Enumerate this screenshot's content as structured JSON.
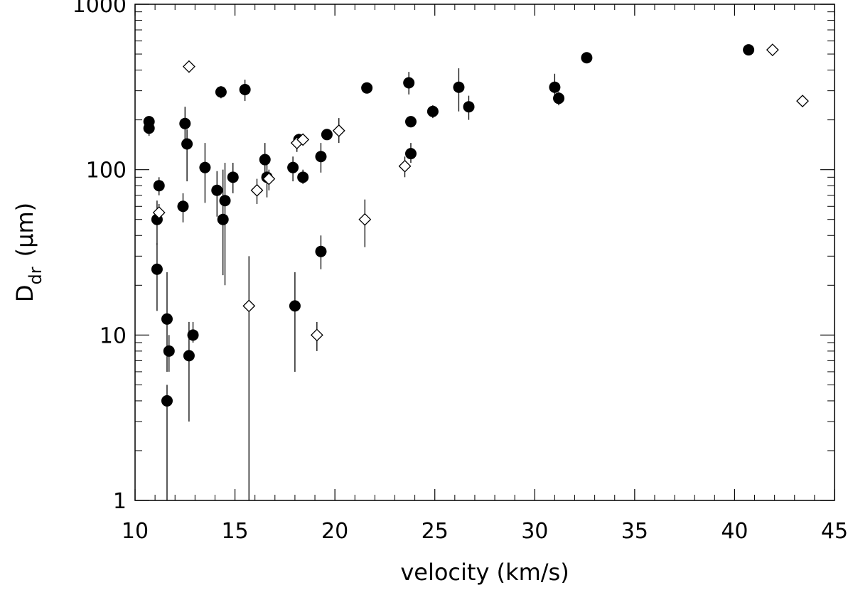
{
  "chart_data": {
    "type": "scatter",
    "xlabel": "velocity (km/s)",
    "ylabel": {
      "main": "D",
      "sub": "dr",
      "unit": "(μm)"
    },
    "xlim": [
      10,
      45
    ],
    "ylim": [
      1,
      1000
    ],
    "yscale": "log",
    "x_ticks": [
      10,
      15,
      20,
      25,
      30,
      35,
      40,
      45
    ],
    "x_tick_labels": [
      "10",
      "15",
      "20",
      "25",
      "30",
      "35",
      "40",
      "45"
    ],
    "x_minor_step": 1,
    "y_ticks": [
      1,
      10,
      100,
      1000
    ],
    "y_tick_labels": [
      "1",
      "10",
      "100",
      "1000"
    ],
    "grid": false,
    "legend": "none",
    "series": [
      {
        "marker": "filled-circle",
        "points": [
          {
            "x": 10.7,
            "y": 195,
            "err": [
              180,
              210
            ]
          },
          {
            "x": 10.7,
            "y": 178,
            "err": [
              160,
              195
            ]
          },
          {
            "x": 11.1,
            "y": 50,
            "err": [
              35,
              65
            ]
          },
          {
            "x": 11.2,
            "y": 80,
            "err": [
              70,
              90
            ]
          },
          {
            "x": 11.1,
            "y": 25,
            "err": [
              14,
              36
            ]
          },
          {
            "x": 11.6,
            "y": 12.5,
            "err": [
              6,
              24
            ]
          },
          {
            "x": 11.7,
            "y": 8,
            "err": [
              6,
              10
            ]
          },
          {
            "x": 11.6,
            "y": 4,
            "err": [
              1,
              5
            ]
          },
          {
            "x": 12.4,
            "y": 60,
            "err": [
              48,
              72
            ]
          },
          {
            "x": 12.5,
            "y": 190,
            "err": [
              150,
              240
            ]
          },
          {
            "x": 12.6,
            "y": 143,
            "err": [
              85,
              175
            ]
          },
          {
            "x": 12.7,
            "y": 7.5,
            "err": [
              3,
              12
            ]
          },
          {
            "x": 12.9,
            "y": 10,
            "err": [
              9,
              12
            ]
          },
          {
            "x": 13.5,
            "y": 103,
            "err": [
              63,
              145
            ]
          },
          {
            "x": 14.1,
            "y": 75,
            "err": [
              52,
              98
            ]
          },
          {
            "x": 14.3,
            "y": 295,
            "err": [
              270,
              320
            ]
          },
          {
            "x": 14.4,
            "y": 50,
            "err": [
              23,
              100
            ]
          },
          {
            "x": 14.5,
            "y": 65,
            "err": [
              20,
              110
            ]
          },
          {
            "x": 14.9,
            "y": 90,
            "err": [
              72,
              110
            ]
          },
          {
            "x": 15.5,
            "y": 305,
            "err": [
              260,
              350
            ]
          },
          {
            "x": 16.5,
            "y": 115,
            "err": [
              90,
              145
            ]
          },
          {
            "x": 16.6,
            "y": 90,
            "err": [
              68,
              110
            ]
          },
          {
            "x": 17.9,
            "y": 103,
            "err": [
              85,
              120
            ]
          },
          {
            "x": 18.0,
            "y": 15,
            "err": [
              6,
              24
            ]
          },
          {
            "x": 18.2,
            "y": 152,
            "err": [
              140,
              165
            ]
          },
          {
            "x": 18.4,
            "y": 90,
            "err": [
              82,
              100
            ]
          },
          {
            "x": 19.3,
            "y": 32,
            "err": [
              25,
              40
            ]
          },
          {
            "x": 19.3,
            "y": 120,
            "err": [
              96,
              145
            ]
          },
          {
            "x": 19.6,
            "y": 163,
            "err": [
              155,
              172
            ]
          },
          {
            "x": 21.6,
            "y": 312,
            "err": [
              290,
              335
            ]
          },
          {
            "x": 23.7,
            "y": 335,
            "err": [
              285,
              390
            ]
          },
          {
            "x": 23.8,
            "y": 125,
            "err": [
              110,
              145
            ]
          },
          {
            "x": 23.8,
            "y": 195,
            "err": [
              180,
              210
            ]
          },
          {
            "x": 24.9,
            "y": 225,
            "err": [
              205,
              245
            ]
          },
          {
            "x": 26.2,
            "y": 315,
            "err": [
              225,
              410
            ]
          },
          {
            "x": 26.7,
            "y": 240,
            "err": [
              200,
              280
            ]
          },
          {
            "x": 31.0,
            "y": 315,
            "err": [
              260,
              380
            ]
          },
          {
            "x": 31.2,
            "y": 270,
            "err": [
              245,
              295
            ]
          },
          {
            "x": 32.6,
            "y": 475,
            "err": [
              450,
              500
            ]
          },
          {
            "x": 40.7,
            "y": 530,
            "err": [
              500,
              560
            ]
          }
        ]
      },
      {
        "marker": "open-diamond",
        "points": [
          {
            "x": 11.2,
            "y": 55,
            "err": [
              48,
              62
            ]
          },
          {
            "x": 12.7,
            "y": 420,
            "err": [
              400,
              440
            ]
          },
          {
            "x": 15.7,
            "y": 15,
            "err": [
              1,
              30
            ]
          },
          {
            "x": 16.1,
            "y": 75,
            "err": [
              62,
              88
            ]
          },
          {
            "x": 16.7,
            "y": 88,
            "err": [
              75,
              100
            ]
          },
          {
            "x": 18.1,
            "y": 145,
            "err": [
              128,
              162
            ]
          },
          {
            "x": 18.4,
            "y": 152,
            "err": [
              145,
              160
            ]
          },
          {
            "x": 19.1,
            "y": 10,
            "err": [
              8,
              12
            ]
          },
          {
            "x": 20.2,
            "y": 172,
            "err": [
              145,
              205
            ]
          },
          {
            "x": 21.5,
            "y": 50,
            "err": [
              34,
              66
            ]
          },
          {
            "x": 23.5,
            "y": 105,
            "err": [
              90,
              120
            ]
          },
          {
            "x": 41.9,
            "y": 530,
            "err": [
              510,
              550
            ]
          },
          {
            "x": 43.4,
            "y": 260,
            "err": [
              245,
              275
            ]
          }
        ]
      }
    ]
  }
}
